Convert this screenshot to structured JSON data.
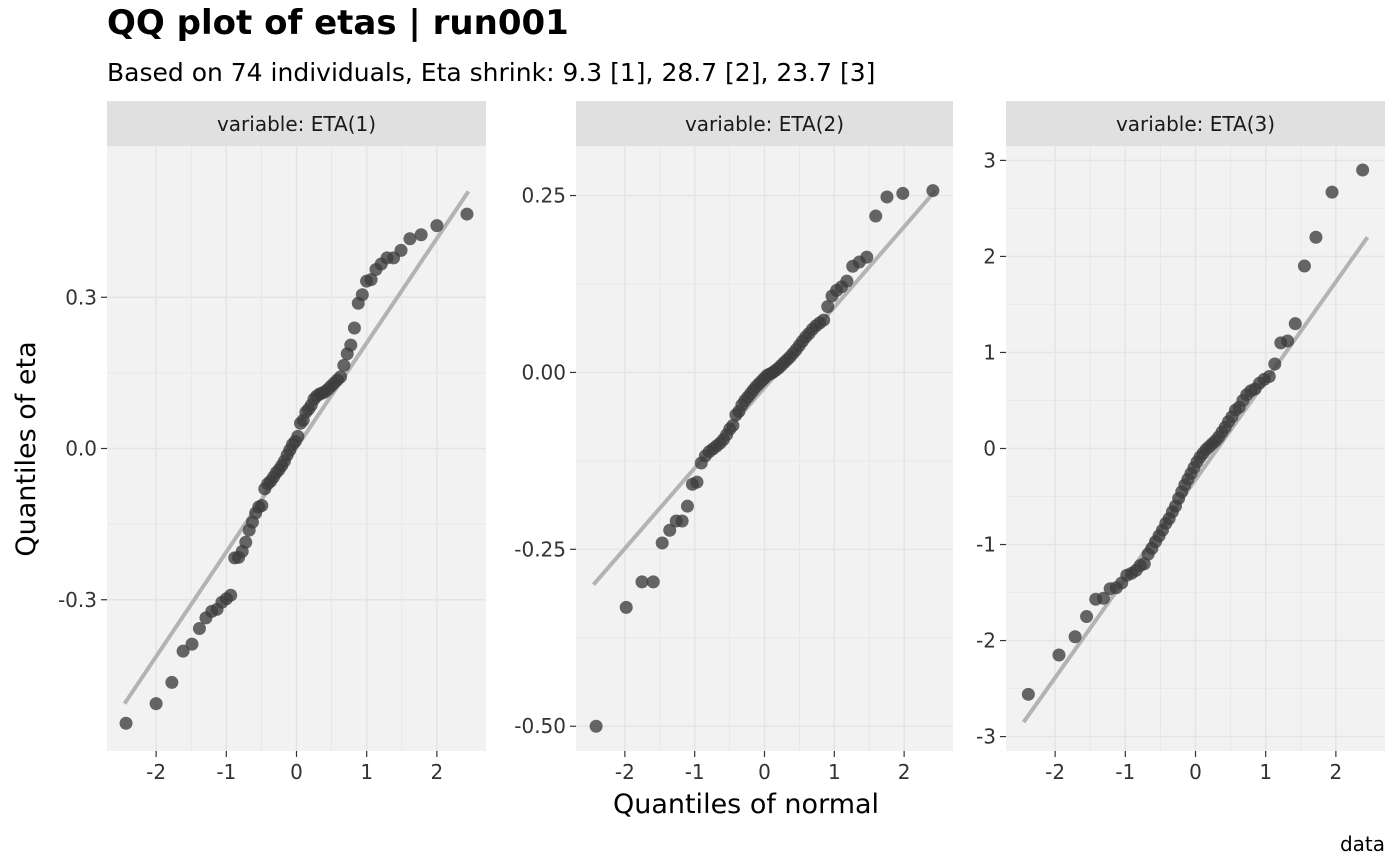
{
  "title": "QQ plot of etas | run001",
  "subtitle": "Based on 74 individuals, Eta shrink: 9.3 [1], 28.7 [2], 23.7 [3]",
  "xlabel": "Quantiles of normal",
  "ylabel": "Quantiles of eta",
  "caption": "data",
  "colors": {
    "panel_bg": "#f2f2f2",
    "strip_bg": "#e0e0e0",
    "grid": "#e4e4e4",
    "point": "#3c3c3c",
    "line": "#b3b3b3"
  },
  "chart_data": [
    {
      "type": "scatter",
      "strip": "variable: ETA(1)",
      "xlim": [
        -2.7,
        2.7
      ],
      "ylim": [
        -0.6,
        0.6
      ],
      "x_ticks": [
        -2,
        -1,
        0,
        1,
        2
      ],
      "x_tick_labels": [
        "-2",
        "-1",
        "0",
        "1",
        "2"
      ],
      "y_ticks": [
        -0.3,
        0,
        0.3
      ],
      "y_tick_labels": [
        "-0.3",
        "0.0",
        "0.3"
      ],
      "line": {
        "x": [
          -2.45,
          2.45
        ],
        "y": [
          -0.506,
          0.51
        ]
      },
      "y": [
        -0.545,
        -0.506,
        -0.464,
        -0.402,
        -0.388,
        -0.357,
        -0.336,
        -0.323,
        -0.319,
        -0.305,
        -0.298,
        -0.291,
        -0.217,
        -0.216,
        -0.204,
        -0.186,
        -0.162,
        -0.146,
        -0.128,
        -0.116,
        -0.113,
        -0.08,
        -0.07,
        -0.065,
        -0.057,
        -0.048,
        -0.042,
        -0.034,
        -0.025,
        -0.013,
        -0.003,
        0.008,
        0.014,
        0.024,
        0.05,
        0.056,
        0.072,
        0.078,
        0.086,
        0.098,
        0.104,
        0.108,
        0.11,
        0.113,
        0.118,
        0.124,
        0.13,
        0.136,
        0.142,
        0.165,
        0.188,
        0.205,
        0.239,
        0.288,
        0.305,
        0.332,
        0.335,
        0.355,
        0.366,
        0.378,
        0.378,
        0.393,
        0.416,
        0.424,
        0.442,
        0.465
      ]
    },
    {
      "type": "scatter",
      "strip": "variable: ETA(2)",
      "xlim": [
        -2.7,
        2.7
      ],
      "ylim": [
        -0.535,
        0.32
      ],
      "x_ticks": [
        -2,
        -1,
        0,
        1,
        2
      ],
      "x_tick_labels": [
        "-2",
        "-1",
        "0",
        "1",
        "2"
      ],
      "y_ticks": [
        -0.5,
        -0.25,
        0,
        0.25
      ],
      "y_tick_labels": [
        "-0.50",
        "-0.25",
        "0.00",
        "0.25"
      ],
      "line": {
        "x": [
          -2.45,
          2.45
        ],
        "y": [
          -0.3,
          0.257
        ]
      },
      "y": [
        -0.5,
        -0.332,
        -0.296,
        -0.296,
        -0.241,
        -0.223,
        -0.21,
        -0.21,
        -0.189,
        -0.158,
        -0.155,
        -0.128,
        -0.118,
        -0.112,
        -0.108,
        -0.104,
        -0.1,
        -0.095,
        -0.088,
        -0.08,
        -0.075,
        -0.06,
        -0.055,
        -0.046,
        -0.04,
        -0.035,
        -0.03,
        -0.025,
        -0.02,
        -0.016,
        -0.012,
        -0.008,
        -0.004,
        -0.002,
        0.0,
        0.003,
        0.006,
        0.01,
        0.014,
        0.018,
        0.022,
        0.027,
        0.032,
        0.038,
        0.044,
        0.05,
        0.055,
        0.061,
        0.066,
        0.07,
        0.074,
        0.093,
        0.108,
        0.116,
        0.121,
        0.129,
        0.15,
        0.156,
        0.163,
        0.221,
        0.248,
        0.253,
        0.257
      ]
    },
    {
      "type": "scatter",
      "strip": "variable: ETA(3)",
      "xlim": [
        -2.7,
        2.7
      ],
      "ylim": [
        -3.15,
        3.15
      ],
      "x_ticks": [
        -2,
        -1,
        0,
        1,
        2
      ],
      "x_tick_labels": [
        "-2",
        "-1",
        "0",
        "1",
        "2"
      ],
      "y_ticks": [
        -3,
        -2,
        -1,
        0,
        1,
        2,
        3
      ],
      "y_tick_labels": [
        "-3",
        "-2",
        "-1",
        "0",
        "1",
        "2",
        "3"
      ],
      "line": {
        "x": [
          -2.45,
          2.45
        ],
        "y": [
          -2.85,
          2.2
        ]
      },
      "y": [
        -2.56,
        -2.15,
        -1.96,
        -1.75,
        -1.57,
        -1.56,
        -1.46,
        -1.45,
        -1.4,
        -1.32,
        -1.3,
        -1.27,
        -1.22,
        -1.2,
        -1.1,
        -1.04,
        -0.97,
        -0.91,
        -0.85,
        -0.78,
        -0.73,
        -0.66,
        -0.6,
        -0.52,
        -0.45,
        -0.38,
        -0.32,
        -0.26,
        -0.2,
        -0.14,
        -0.09,
        -0.05,
        -0.01,
        0.02,
        0.05,
        0.08,
        0.12,
        0.17,
        0.22,
        0.28,
        0.33,
        0.4,
        0.43,
        0.5,
        0.56,
        0.6,
        0.62,
        0.68,
        0.72,
        0.75,
        0.88,
        1.1,
        1.12,
        1.3,
        1.9,
        2.2,
        2.67,
        2.9
      ]
    }
  ]
}
